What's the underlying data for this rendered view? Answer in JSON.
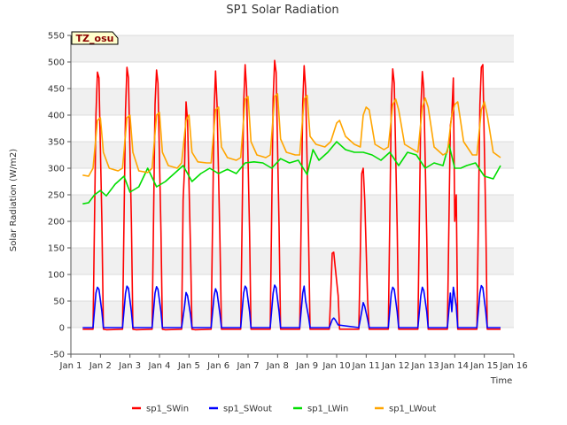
{
  "chart_data": {
    "type": "line",
    "title": "SP1 Solar Radiation",
    "xlabel": "Time",
    "ylabel": "Solar Radiation (W/m2)",
    "annotation": "TZ_osu",
    "xlim": [
      1,
      16
    ],
    "ylim": [
      -50,
      550
    ],
    "x_ticks": [
      1,
      2,
      3,
      4,
      5,
      6,
      7,
      8,
      9,
      10,
      11,
      12,
      13,
      14,
      15,
      16
    ],
    "x_tick_labels": [
      "Jan 1",
      "Jan 2",
      "Jan 3",
      "Jan 4",
      "Jan 5",
      "Jan 6",
      "Jan 7",
      "Jan 8",
      "Jan 9",
      "Jan 10",
      "Jan 11",
      "Jan 12",
      "Jan 13",
      "Jan 14",
      "Jan 15",
      "Jan 16"
    ],
    "y_ticks": [
      -50,
      0,
      50,
      100,
      150,
      200,
      250,
      300,
      350,
      400,
      450,
      500,
      550
    ],
    "grid": true,
    "legend_position": "bottom",
    "series": [
      {
        "name": "sp1_SWin",
        "color": "#ff0000",
        "x": [
          1.4,
          1.75,
          1.85,
          1.9,
          1.95,
          2.05,
          2.1,
          2.2,
          2.75,
          2.85,
          2.9,
          2.95,
          3.05,
          3.1,
          3.2,
          3.75,
          3.85,
          3.9,
          3.95,
          4.05,
          4.1,
          4.2,
          4.75,
          4.8,
          4.85,
          4.9,
          4.95,
          5.05,
          5.1,
          5.2,
          5.75,
          5.85,
          5.9,
          5.95,
          6.05,
          6.1,
          6.2,
          6.75,
          6.85,
          6.9,
          6.95,
          7.05,
          7.1,
          7.2,
          7.75,
          7.85,
          7.9,
          7.95,
          8.05,
          8.1,
          8.2,
          8.75,
          8.85,
          8.9,
          8.95,
          9.05,
          9.1,
          9.2,
          9.75,
          9.8,
          9.85,
          9.9,
          9.95,
          10.05,
          10.1,
          10.2,
          10.75,
          10.8,
          10.85,
          10.9,
          10.95,
          11.05,
          11.1,
          11.2,
          11.75,
          11.85,
          11.9,
          11.95,
          12.05,
          12.1,
          12.2,
          12.75,
          12.85,
          12.9,
          12.95,
          13.05,
          13.1,
          13.2,
          13.75,
          13.85,
          13.9,
          13.95,
          14.0,
          14.05,
          14.1,
          14.2,
          14.75,
          14.85,
          14.9,
          14.95,
          15.05,
          15.1,
          15.2,
          15.55
        ],
        "y": [
          -3,
          -3,
          400,
          481,
          470,
          200,
          -3,
          -4,
          -3,
          410,
          490,
          470,
          200,
          -3,
          -4,
          -3,
          420,
          485,
          460,
          180,
          -3,
          -4,
          -3,
          240,
          300,
          425,
          390,
          150,
          -3,
          -4,
          -3,
          410,
          483,
          420,
          160,
          -3,
          -3,
          -3,
          420,
          495,
          450,
          180,
          -3,
          -3,
          -3,
          430,
          503,
          480,
          190,
          -3,
          -3,
          -3,
          420,
          493,
          450,
          170,
          -3,
          -3,
          -3,
          60,
          140,
          142,
          115,
          60,
          -3,
          -3,
          -3,
          140,
          290,
          300,
          240,
          50,
          -3,
          -3,
          -3,
          420,
          487,
          460,
          190,
          -3,
          -3,
          -3,
          410,
          482,
          450,
          170,
          -3,
          -3,
          -3,
          380,
          400,
          470,
          200,
          250,
          -3,
          -3,
          -3,
          420,
          490,
          495,
          200,
          -3,
          -3,
          -3
        ]
      },
      {
        "name": "sp1_SWout",
        "color": "#0000ff",
        "x": [
          1.4,
          1.75,
          1.85,
          1.9,
          1.95,
          2.05,
          2.1,
          2.75,
          2.85,
          2.9,
          2.95,
          3.05,
          3.1,
          3.75,
          3.85,
          3.9,
          3.95,
          4.05,
          4.1,
          4.75,
          4.85,
          4.9,
          4.95,
          5.05,
          5.1,
          5.75,
          5.85,
          5.9,
          5.95,
          6.05,
          6.1,
          6.75,
          6.85,
          6.9,
          6.95,
          7.05,
          7.1,
          7.75,
          7.85,
          7.9,
          7.95,
          8.05,
          8.1,
          8.75,
          8.85,
          8.9,
          8.95,
          9.05,
          9.1,
          9.75,
          9.85,
          9.9,
          9.95,
          10.05,
          10.75,
          10.85,
          10.9,
          10.95,
          11.05,
          11.1,
          11.75,
          11.85,
          11.9,
          11.95,
          12.05,
          12.1,
          12.75,
          12.85,
          12.9,
          12.95,
          13.05,
          13.1,
          13.75,
          13.85,
          13.9,
          13.95,
          14.05,
          14.1,
          14.75,
          14.85,
          14.9,
          14.95,
          15.05,
          15.1,
          15.55
        ],
        "y": [
          0,
          0,
          65,
          76,
          72,
          30,
          0,
          0,
          65,
          78,
          74,
          30,
          0,
          0,
          65,
          77,
          72,
          30,
          0,
          0,
          40,
          66,
          60,
          25,
          0,
          0,
          60,
          73,
          66,
          25,
          0,
          0,
          65,
          78,
          74,
          30,
          0,
          0,
          65,
          80,
          75,
          30,
          0,
          0,
          65,
          78,
          50,
          20,
          0,
          0,
          15,
          18,
          15,
          5,
          0,
          30,
          47,
          40,
          15,
          0,
          0,
          65,
          76,
          72,
          30,
          0,
          0,
          60,
          76,
          70,
          30,
          0,
          0,
          65,
          30,
          76,
          40,
          0,
          0,
          65,
          79,
          75,
          30,
          0,
          0
        ]
      },
      {
        "name": "sp1_LWin",
        "color": "#00dd00",
        "x": [
          1.4,
          1.6,
          1.8,
          2.0,
          2.2,
          2.5,
          2.8,
          3.0,
          3.3,
          3.6,
          3.9,
          4.2,
          4.5,
          4.8,
          5.1,
          5.4,
          5.7,
          6.0,
          6.3,
          6.6,
          6.9,
          7.2,
          7.5,
          7.8,
          8.1,
          8.4,
          8.7,
          9.0,
          9.2,
          9.4,
          9.7,
          10.0,
          10.3,
          10.6,
          10.9,
          11.2,
          11.5,
          11.8,
          12.1,
          12.4,
          12.7,
          13.0,
          13.3,
          13.6,
          13.8,
          14.0,
          14.2,
          14.4,
          14.7,
          15.0,
          15.3,
          15.55
        ],
        "y": [
          233,
          235,
          250,
          258,
          248,
          270,
          285,
          255,
          265,
          300,
          265,
          275,
          290,
          305,
          275,
          290,
          300,
          290,
          298,
          290,
          310,
          312,
          310,
          300,
          318,
          310,
          315,
          288,
          335,
          315,
          330,
          350,
          335,
          330,
          330,
          325,
          315,
          330,
          305,
          330,
          325,
          300,
          310,
          305,
          345,
          300,
          300,
          305,
          310,
          285,
          280,
          305
        ]
      },
      {
        "name": "sp1_LWout",
        "color": "#ffa500",
        "x": [
          1.4,
          1.6,
          1.75,
          1.9,
          2.0,
          2.1,
          2.3,
          2.6,
          2.75,
          2.9,
          3.0,
          3.1,
          3.3,
          3.6,
          3.75,
          3.9,
          4.0,
          4.1,
          4.3,
          4.6,
          4.75,
          4.9,
          5.0,
          5.1,
          5.3,
          5.6,
          5.75,
          5.9,
          6.0,
          6.1,
          6.3,
          6.6,
          6.75,
          6.9,
          7.0,
          7.1,
          7.3,
          7.6,
          7.75,
          7.9,
          8.0,
          8.1,
          8.3,
          8.6,
          8.75,
          8.9,
          9.0,
          9.1,
          9.3,
          9.6,
          9.8,
          10.0,
          10.1,
          10.3,
          10.6,
          10.8,
          10.9,
          11.0,
          11.1,
          11.3,
          11.6,
          11.75,
          11.9,
          12.0,
          12.1,
          12.3,
          12.6,
          12.75,
          12.9,
          13.0,
          13.1,
          13.3,
          13.6,
          13.75,
          13.9,
          14.0,
          14.1,
          14.3,
          14.6,
          14.75,
          14.9,
          15.0,
          15.1,
          15.3,
          15.55
        ],
        "y": [
          287,
          285,
          300,
          390,
          395,
          330,
          300,
          295,
          300,
          395,
          400,
          330,
          295,
          292,
          300,
          400,
          405,
          330,
          305,
          300,
          310,
          390,
          400,
          330,
          312,
          310,
          310,
          410,
          415,
          340,
          320,
          315,
          320,
          430,
          435,
          350,
          325,
          320,
          325,
          435,
          440,
          355,
          330,
          325,
          325,
          430,
          437,
          360,
          345,
          340,
          350,
          385,
          390,
          360,
          345,
          340,
          400,
          415,
          410,
          345,
          335,
          340,
          420,
          430,
          410,
          345,
          335,
          330,
          415,
          432,
          415,
          340,
          325,
          330,
          400,
          420,
          425,
          350,
          325,
          325,
          410,
          425,
          400,
          330,
          320
        ]
      }
    ]
  }
}
